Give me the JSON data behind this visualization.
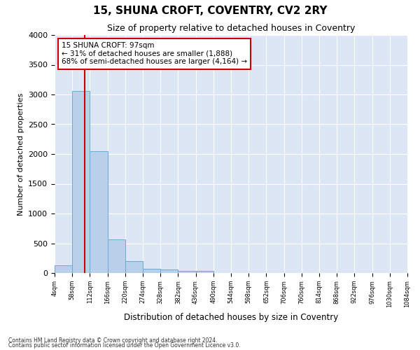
{
  "title": "15, SHUNA CROFT, COVENTRY, CV2 2RY",
  "subtitle": "Size of property relative to detached houses in Coventry",
  "xlabel": "Distribution of detached houses by size in Coventry",
  "ylabel": "Number of detached properties",
  "bar_color": "#b8d0ea",
  "bar_edge_color": "#6aaad4",
  "background_color": "#dce6f5",
  "grid_color": "#ffffff",
  "vline_color": "#cc0000",
  "vline_x": 97,
  "bin_edges": [
    4,
    58,
    112,
    166,
    220,
    274,
    328,
    382,
    436,
    490,
    544,
    598,
    652,
    706,
    760,
    814,
    868,
    922,
    976,
    1030,
    1084
  ],
  "bar_values": [
    130,
    3060,
    2050,
    560,
    195,
    75,
    55,
    40,
    40,
    0,
    0,
    0,
    0,
    0,
    0,
    0,
    0,
    0,
    0,
    0
  ],
  "ylim": [
    0,
    4000
  ],
  "annotation_text": "15 SHUNA CROFT: 97sqm\n← 31% of detached houses are smaller (1,888)\n68% of semi-detached houses are larger (4,164) →",
  "annotation_box_color": "#ffffff",
  "annotation_box_edge": "#cc0000",
  "footer1": "Contains HM Land Registry data © Crown copyright and database right 2024.",
  "footer2": "Contains public sector information licensed under the Open Government Licence v3.0.",
  "yticks": [
    0,
    500,
    1000,
    1500,
    2000,
    2500,
    3000,
    3500,
    4000
  ],
  "figsize": [
    6.0,
    5.0
  ],
  "dpi": 100
}
